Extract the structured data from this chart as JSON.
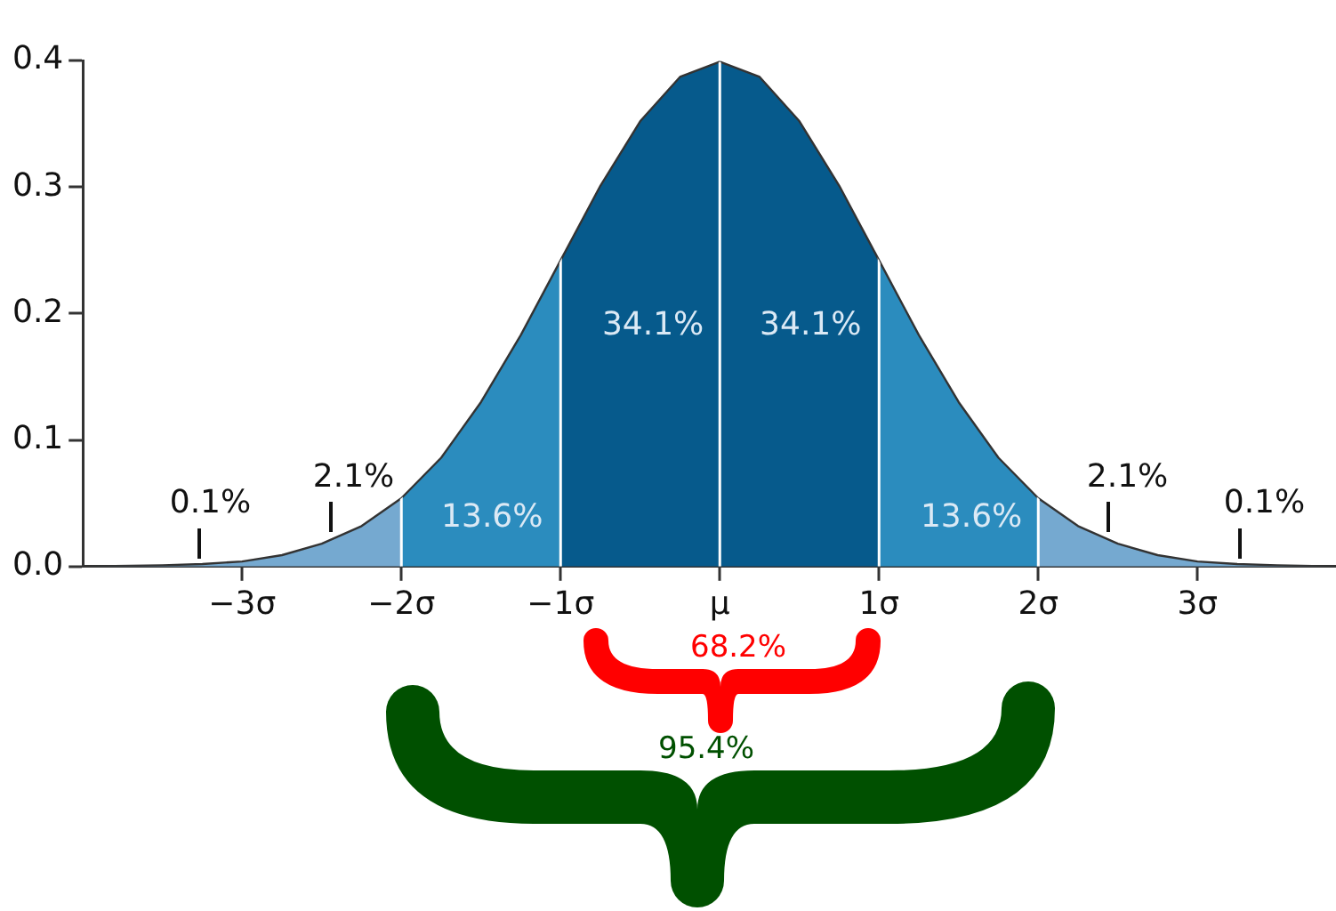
{
  "chart_data": {
    "type": "area",
    "xlim": [
      -4,
      3.87
    ],
    "ylim": [
      0,
      0.4
    ],
    "xticks": [
      {
        "value": -3,
        "label": "−3σ"
      },
      {
        "value": -2,
        "label": "−2σ"
      },
      {
        "value": -1,
        "label": "−1σ"
      },
      {
        "value": 0,
        "label": "μ"
      },
      {
        "value": 1,
        "label": "1σ"
      },
      {
        "value": 2,
        "label": "2σ"
      },
      {
        "value": 3,
        "label": "3σ"
      }
    ],
    "yticks": [
      {
        "value": 0,
        "label": "0.0"
      },
      {
        "value": 0.1,
        "label": "0.1"
      },
      {
        "value": 0.2,
        "label": "0.2"
      },
      {
        "value": 0.3,
        "label": "0.3"
      },
      {
        "value": 0.4,
        "label": "0.4"
      }
    ],
    "grid": false,
    "legend": false,
    "marker": "none",
    "series": [
      {
        "color": "#75a9d0",
        "x": [
          -4,
          -3.5,
          -3.25,
          -3,
          -2.75,
          -2.5,
          -2.25,
          -2
        ],
        "values": [
          0,
          0.001,
          0.002,
          0.004,
          0.009,
          0.018,
          0.032,
          0.054
        ]
      },
      {
        "color": "#2b8cbe",
        "x": [
          -2,
          -1.75,
          -1.5,
          -1.25,
          -1
        ],
        "values": [
          0.054,
          0.086,
          0.13,
          0.183,
          0.242
        ]
      },
      {
        "color": "#065a8c",
        "x": [
          -1,
          -0.75,
          -0.5,
          -0.25,
          0
        ],
        "values": [
          0.242,
          0.301,
          0.352,
          0.387,
          0.399
        ]
      },
      {
        "color": "#065a8c",
        "x": [
          0,
          0.25,
          0.5,
          0.75,
          1
        ],
        "values": [
          0.399,
          0.387,
          0.352,
          0.301,
          0.242
        ]
      },
      {
        "color": "#2b8cbe",
        "x": [
          1,
          1.25,
          1.5,
          1.75,
          2
        ],
        "values": [
          0.242,
          0.183,
          0.13,
          0.086,
          0.054
        ]
      },
      {
        "color": "#75a9d0",
        "x": [
          2,
          2.25,
          2.5,
          2.75,
          3,
          3.25,
          3.5,
          3.87
        ],
        "values": [
          0.054,
          0.032,
          0.018,
          0.009,
          0.004,
          0.002,
          0.001,
          0
        ]
      }
    ],
    "ref_lines": [
      {
        "axis": "x",
        "value": -2,
        "color": "#ffffff"
      },
      {
        "axis": "x",
        "value": -1,
        "color": "#ffffff"
      },
      {
        "axis": "x",
        "value": 0,
        "color": "#ffffff"
      },
      {
        "axis": "x",
        "value": 1,
        "color": "#ffffff"
      },
      {
        "axis": "x",
        "value": 2,
        "color": "#ffffff"
      }
    ],
    "annotations": [
      "0.1%",
      "2.1%",
      "13.6%",
      "34.1%",
      "34.1%",
      "13.6%",
      "2.1%",
      "0.1%",
      "68.2%",
      "95.4%"
    ]
  }
}
